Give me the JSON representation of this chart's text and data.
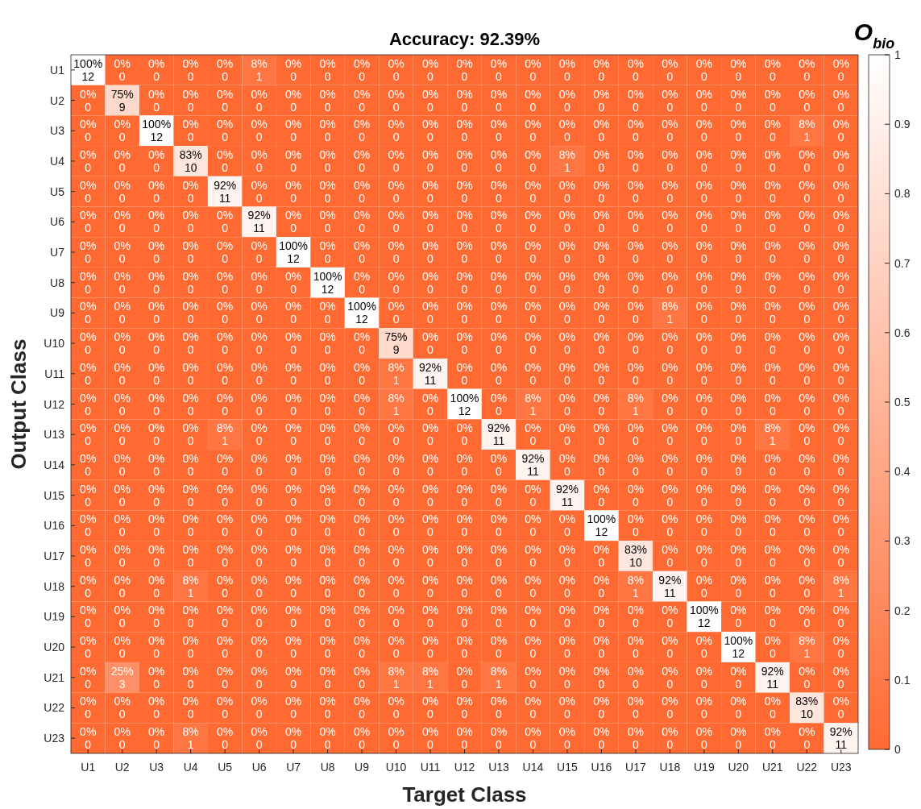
{
  "chart_data": {
    "type": "heatmap",
    "title": "Accuracy: 92.39%",
    "xlabel": "Target Class",
    "ylabel": "Output Class",
    "clabel": "O$_{bio}$",
    "categories": [
      "U1",
      "U2",
      "U3",
      "U4",
      "U5",
      "U6",
      "U7",
      "U8",
      "U9",
      "U10",
      "U11",
      "U12",
      "U13",
      "U14",
      "U15",
      "U16",
      "U17",
      "U18",
      "U19",
      "U20",
      "U21",
      "U22",
      "U23"
    ],
    "y_categories": [
      "U1",
      "U2",
      "U3",
      "U4",
      "U5",
      "U6",
      "U7",
      "U8",
      "U9",
      "U10",
      "U11",
      "U12",
      "U13",
      "U14",
      "U15",
      "U16",
      "U17",
      "U18",
      "U19",
      "U20",
      "U21",
      "U22",
      "U23"
    ],
    "clim": [
      0,
      1
    ],
    "cticks": [
      0,
      0.1,
      0.2,
      0.3,
      0.4,
      0.5,
      0.6,
      0.7,
      0.8,
      0.9,
      1
    ],
    "cells": [
      [
        1,
        0,
        0,
        0,
        0,
        0.08,
        0,
        0,
        0,
        0,
        0,
        0,
        0,
        0,
        0,
        0,
        0,
        0,
        0,
        0,
        0,
        0,
        0
      ],
      [
        0,
        0.75,
        0,
        0,
        0,
        0,
        0,
        0,
        0,
        0,
        0,
        0,
        0,
        0,
        0,
        0,
        0,
        0,
        0,
        0,
        0,
        0,
        0
      ],
      [
        0,
        0,
        1,
        0,
        0,
        0,
        0,
        0,
        0,
        0,
        0,
        0,
        0,
        0,
        0,
        0,
        0,
        0,
        0,
        0,
        0,
        0.08,
        0
      ],
      [
        0,
        0,
        0,
        0.83,
        0,
        0,
        0,
        0,
        0,
        0,
        0,
        0,
        0,
        0,
        0.08,
        0,
        0,
        0,
        0,
        0,
        0,
        0,
        0
      ],
      [
        0,
        0,
        0,
        0,
        0.92,
        0,
        0,
        0,
        0,
        0,
        0,
        0,
        0,
        0,
        0,
        0,
        0,
        0,
        0,
        0,
        0,
        0,
        0
      ],
      [
        0,
        0,
        0,
        0,
        0,
        0.92,
        0,
        0,
        0,
        0,
        0,
        0,
        0,
        0,
        0,
        0,
        0,
        0,
        0,
        0,
        0,
        0,
        0
      ],
      [
        0,
        0,
        0,
        0,
        0,
        0,
        1,
        0,
        0,
        0,
        0,
        0,
        0,
        0,
        0,
        0,
        0,
        0,
        0,
        0,
        0,
        0,
        0
      ],
      [
        0,
        0,
        0,
        0,
        0,
        0,
        0,
        1,
        0,
        0,
        0,
        0,
        0,
        0,
        0,
        0,
        0,
        0,
        0,
        0,
        0,
        0,
        0
      ],
      [
        0,
        0,
        0,
        0,
        0,
        0,
        0,
        0,
        1,
        0,
        0,
        0,
        0,
        0,
        0,
        0,
        0,
        0.08,
        0,
        0,
        0,
        0,
        0
      ],
      [
        0,
        0,
        0,
        0,
        0,
        0,
        0,
        0,
        0,
        0.75,
        0,
        0,
        0,
        0,
        0,
        0,
        0,
        0,
        0,
        0,
        0,
        0,
        0
      ],
      [
        0,
        0,
        0,
        0,
        0,
        0,
        0,
        0,
        0,
        0.08,
        0.92,
        0,
        0,
        0,
        0,
        0,
        0,
        0,
        0,
        0,
        0,
        0,
        0
      ],
      [
        0,
        0,
        0,
        0,
        0,
        0,
        0,
        0,
        0,
        0.08,
        0,
        1,
        0,
        0.08,
        0,
        0,
        0.08,
        0,
        0,
        0,
        0,
        0,
        0
      ],
      [
        0,
        0,
        0,
        0,
        0.08,
        0,
        0,
        0,
        0,
        0,
        0,
        0,
        0.92,
        0,
        0,
        0,
        0,
        0,
        0,
        0,
        0.08,
        0,
        0
      ],
      [
        0,
        0,
        0,
        0,
        0,
        0,
        0,
        0,
        0,
        0,
        0,
        0,
        0,
        0.92,
        0,
        0,
        0,
        0,
        0,
        0,
        0,
        0,
        0
      ],
      [
        0,
        0,
        0,
        0,
        0,
        0,
        0,
        0,
        0,
        0,
        0,
        0,
        0,
        0,
        0.92,
        0,
        0,
        0,
        0,
        0,
        0,
        0,
        0
      ],
      [
        0,
        0,
        0,
        0,
        0,
        0,
        0,
        0,
        0,
        0,
        0,
        0,
        0,
        0,
        0,
        1,
        0,
        0,
        0,
        0,
        0,
        0,
        0
      ],
      [
        0,
        0,
        0,
        0,
        0,
        0,
        0,
        0,
        0,
        0,
        0,
        0,
        0,
        0,
        0,
        0,
        0.83,
        0,
        0,
        0,
        0,
        0,
        0
      ],
      [
        0,
        0,
        0,
        0.08,
        0,
        0,
        0,
        0,
        0,
        0,
        0,
        0,
        0,
        0,
        0,
        0,
        0.08,
        0.92,
        0,
        0,
        0,
        0,
        0.08
      ],
      [
        0,
        0,
        0,
        0,
        0,
        0,
        0,
        0,
        0,
        0,
        0,
        0,
        0,
        0,
        0,
        0,
        0,
        0,
        1,
        0,
        0,
        0,
        0
      ],
      [
        0,
        0,
        0,
        0,
        0,
        0,
        0,
        0,
        0,
        0,
        0,
        0,
        0,
        0,
        0,
        0,
        0,
        0,
        0,
        1,
        0,
        0.08,
        0
      ],
      [
        0,
        0.25,
        0,
        0,
        0,
        0,
        0,
        0,
        0,
        0.08,
        0.08,
        0,
        0.08,
        0,
        0,
        0,
        0,
        0,
        0,
        0,
        0.92,
        0,
        0
      ],
      [
        0,
        0,
        0,
        0,
        0,
        0,
        0,
        0,
        0,
        0,
        0,
        0,
        0,
        0,
        0,
        0,
        0,
        0,
        0,
        0,
        0,
        0.83,
        0
      ],
      [
        0,
        0,
        0,
        0.08,
        0,
        0,
        0,
        0,
        0,
        0,
        0,
        0,
        0,
        0,
        0,
        0,
        0,
        0,
        0,
        0,
        0,
        0,
        0.92
      ]
    ],
    "cell_labels": [
      [
        "100%\n12",
        "0%\n0",
        "0%\n0",
        "0%\n0",
        "0%\n0",
        "8%\n1",
        "0%\n0",
        "0%\n0",
        "0%\n0",
        "0%\n0",
        "0%\n0",
        "0%\n0",
        "0%\n0",
        "0%\n0",
        "0%\n0",
        "0%\n0",
        "0%\n0",
        "0%\n0",
        "0%\n0",
        "0%\n0",
        "0%\n0",
        "0%\n0",
        "0%\n0"
      ],
      [
        "0%\n0",
        "75%\n9",
        "0%\n0",
        "0%\n0",
        "0%\n0",
        "0%\n0",
        "0%\n0",
        "0%\n0",
        "0%\n0",
        "0%\n0",
        "0%\n0",
        "0%\n0",
        "0%\n0",
        "0%\n0",
        "0%\n0",
        "0%\n0",
        "0%\n0",
        "0%\n0",
        "0%\n0",
        "0%\n0",
        "0%\n0",
        "0%\n0",
        "0%\n0"
      ],
      [
        "0%\n0",
        "0%\n0",
        "100%\n12",
        "0%\n0",
        "0%\n0",
        "0%\n0",
        "0%\n0",
        "0%\n0",
        "0%\n0",
        "0%\n0",
        "0%\n0",
        "0%\n0",
        "0%\n0",
        "0%\n0",
        "0%\n0",
        "0%\n0",
        "0%\n0",
        "0%\n0",
        "0%\n0",
        "0%\n0",
        "0%\n0",
        "8%\n1",
        "0%\n0"
      ],
      [
        "0%\n0",
        "0%\n0",
        "0%\n0",
        "83%\n10",
        "0%\n0",
        "0%\n0",
        "0%\n0",
        "0%\n0",
        "0%\n0",
        "0%\n0",
        "0%\n0",
        "0%\n0",
        "0%\n0",
        "0%\n0",
        "8%\n1",
        "0%\n0",
        "0%\n0",
        "0%\n0",
        "0%\n0",
        "0%\n0",
        "0%\n0",
        "0%\n0",
        "0%\n0"
      ],
      [
        "0%\n0",
        "0%\n0",
        "0%\n0",
        "0%\n0",
        "92%\n11",
        "0%\n0",
        "0%\n0",
        "0%\n0",
        "0%\n0",
        "0%\n0",
        "0%\n0",
        "0%\n0",
        "0%\n0",
        "0%\n0",
        "0%\n0",
        "0%\n0",
        "0%\n0",
        "0%\n0",
        "0%\n0",
        "0%\n0",
        "0%\n0",
        "0%\n0",
        "0%\n0"
      ],
      [
        "0%\n0",
        "0%\n0",
        "0%\n0",
        "0%\n0",
        "0%\n0",
        "92%\n11",
        "0%\n0",
        "0%\n0",
        "0%\n0",
        "0%\n0",
        "0%\n0",
        "0%\n0",
        "0%\n0",
        "0%\n0",
        "0%\n0",
        "0%\n0",
        "0%\n0",
        "0%\n0",
        "0%\n0",
        "0%\n0",
        "0%\n0",
        "0%\n0",
        "0%\n0"
      ],
      [
        "0%\n0",
        "0%\n0",
        "0%\n0",
        "0%\n0",
        "0%\n0",
        "0%\n0",
        "100%\n12",
        "0%\n0",
        "0%\n0",
        "0%\n0",
        "0%\n0",
        "0%\n0",
        "0%\n0",
        "0%\n0",
        "0%\n0",
        "0%\n0",
        "0%\n0",
        "0%\n0",
        "0%\n0",
        "0%\n0",
        "0%\n0",
        "0%\n0",
        "0%\n0"
      ],
      [
        "0%\n0",
        "0%\n0",
        "0%\n0",
        "0%\n0",
        "0%\n0",
        "0%\n0",
        "0%\n0",
        "100%\n12",
        "0%\n0",
        "0%\n0",
        "0%\n0",
        "0%\n0",
        "0%\n0",
        "0%\n0",
        "0%\n0",
        "0%\n0",
        "0%\n0",
        "0%\n0",
        "0%\n0",
        "0%\n0",
        "0%\n0",
        "0%\n0",
        "0%\n0"
      ],
      [
        "0%\n0",
        "0%\n0",
        "0%\n0",
        "0%\n0",
        "0%\n0",
        "0%\n0",
        "0%\n0",
        "0%\n0",
        "100%\n12",
        "0%\n0",
        "0%\n0",
        "0%\n0",
        "0%\n0",
        "0%\n0",
        "0%\n0",
        "0%\n0",
        "0%\n0",
        "8%\n1",
        "0%\n0",
        "0%\n0",
        "0%\n0",
        "0%\n0",
        "0%\n0"
      ],
      [
        "0%\n0",
        "0%\n0",
        "0%\n0",
        "0%\n0",
        "0%\n0",
        "0%\n0",
        "0%\n0",
        "0%\n0",
        "0%\n0",
        "75%\n9",
        "0%\n0",
        "0%\n0",
        "0%\n0",
        "0%\n0",
        "0%\n0",
        "0%\n0",
        "0%\n0",
        "0%\n0",
        "0%\n0",
        "0%\n0",
        "0%\n0",
        "0%\n0",
        "0%\n0"
      ],
      [
        "0%\n0",
        "0%\n0",
        "0%\n0",
        "0%\n0",
        "0%\n0",
        "0%\n0",
        "0%\n0",
        "0%\n0",
        "0%\n0",
        "8%\n1",
        "92%\n11",
        "0%\n0",
        "0%\n0",
        "0%\n0",
        "0%\n0",
        "0%\n0",
        "0%\n0",
        "0%\n0",
        "0%\n0",
        "0%\n0",
        "0%\n0",
        "0%\n0",
        "0%\n0"
      ],
      [
        "0%\n0",
        "0%\n0",
        "0%\n0",
        "0%\n0",
        "0%\n0",
        "0%\n0",
        "0%\n0",
        "0%\n0",
        "0%\n0",
        "8%\n1",
        "0%\n0",
        "100%\n12",
        "0%\n0",
        "8%\n1",
        "0%\n0",
        "0%\n0",
        "8%\n1",
        "0%\n0",
        "0%\n0",
        "0%\n0",
        "0%\n0",
        "0%\n0",
        "0%\n0"
      ],
      [
        "0%\n0",
        "0%\n0",
        "0%\n0",
        "0%\n0",
        "8%\n1",
        "0%\n0",
        "0%\n0",
        "0%\n0",
        "0%\n0",
        "0%\n0",
        "0%\n0",
        "0%\n0",
        "92%\n11",
        "0%\n0",
        "0%\n0",
        "0%\n0",
        "0%\n0",
        "0%\n0",
        "0%\n0",
        "0%\n0",
        "8%\n1",
        "0%\n0",
        "0%\n0"
      ],
      [
        "0%\n0",
        "0%\n0",
        "0%\n0",
        "0%\n0",
        "0%\n0",
        "0%\n0",
        "0%\n0",
        "0%\n0",
        "0%\n0",
        "0%\n0",
        "0%\n0",
        "0%\n0",
        "0%\n0",
        "92%\n11",
        "0%\n0",
        "0%\n0",
        "0%\n0",
        "0%\n0",
        "0%\n0",
        "0%\n0",
        "0%\n0",
        "0%\n0",
        "0%\n0"
      ],
      [
        "0%\n0",
        "0%\n0",
        "0%\n0",
        "0%\n0",
        "0%\n0",
        "0%\n0",
        "0%\n0",
        "0%\n0",
        "0%\n0",
        "0%\n0",
        "0%\n0",
        "0%\n0",
        "0%\n0",
        "0%\n0",
        "92%\n11",
        "0%\n0",
        "0%\n0",
        "0%\n0",
        "0%\n0",
        "0%\n0",
        "0%\n0",
        "0%\n0",
        "0%\n0"
      ],
      [
        "0%\n0",
        "0%\n0",
        "0%\n0",
        "0%\n0",
        "0%\n0",
        "0%\n0",
        "0%\n0",
        "0%\n0",
        "0%\n0",
        "0%\n0",
        "0%\n0",
        "0%\n0",
        "0%\n0",
        "0%\n0",
        "0%\n0",
        "100%\n12",
        "0%\n0",
        "0%\n0",
        "0%\n0",
        "0%\n0",
        "0%\n0",
        "0%\n0",
        "0%\n0"
      ],
      [
        "0%\n0",
        "0%\n0",
        "0%\n0",
        "0%\n0",
        "0%\n0",
        "0%\n0",
        "0%\n0",
        "0%\n0",
        "0%\n0",
        "0%\n0",
        "0%\n0",
        "0%\n0",
        "0%\n0",
        "0%\n0",
        "0%\n0",
        "0%\n0",
        "83%\n10",
        "0%\n0",
        "0%\n0",
        "0%\n0",
        "0%\n0",
        "0%\n0",
        "0%\n0"
      ],
      [
        "0%\n0",
        "0%\n0",
        "0%\n0",
        "8%\n1",
        "0%\n0",
        "0%\n0",
        "0%\n0",
        "0%\n0",
        "0%\n0",
        "0%\n0",
        "0%\n0",
        "0%\n0",
        "0%\n0",
        "0%\n0",
        "0%\n0",
        "0%\n0",
        "8%\n1",
        "92%\n11",
        "0%\n0",
        "0%\n0",
        "0%\n0",
        "0%\n0",
        "8%\n1"
      ],
      [
        "0%\n0",
        "0%\n0",
        "0%\n0",
        "0%\n0",
        "0%\n0",
        "0%\n0",
        "0%\n0",
        "0%\n0",
        "0%\n0",
        "0%\n0",
        "0%\n0",
        "0%\n0",
        "0%\n0",
        "0%\n0",
        "0%\n0",
        "0%\n0",
        "0%\n0",
        "0%\n0",
        "100%\n12",
        "0%\n0",
        "0%\n0",
        "0%\n0",
        "0%\n0"
      ],
      [
        "0%\n0",
        "0%\n0",
        "0%\n0",
        "0%\n0",
        "0%\n0",
        "0%\n0",
        "0%\n0",
        "0%\n0",
        "0%\n0",
        "0%\n0",
        "0%\n0",
        "0%\n0",
        "0%\n0",
        "0%\n0",
        "0%\n0",
        "0%\n0",
        "0%\n0",
        "0%\n0",
        "0%\n0",
        "100%\n12",
        "0%\n0",
        "8%\n1",
        "0%\n0"
      ],
      [
        "0%\n0",
        "25%\n3",
        "0%\n0",
        "0%\n0",
        "0%\n0",
        "0%\n0",
        "0%\n0",
        "0%\n0",
        "0%\n0",
        "8%\n1",
        "8%\n1",
        "0%\n0",
        "8%\n1",
        "0%\n0",
        "0%\n0",
        "0%\n0",
        "0%\n0",
        "0%\n0",
        "0%\n0",
        "0%\n0",
        "92%\n11",
        "0%\n0",
        "0%\n0"
      ],
      [
        "0%\n0",
        "0%\n0",
        "0%\n0",
        "0%\n0",
        "0%\n0",
        "0%\n0",
        "0%\n0",
        "0%\n0",
        "0%\n0",
        "0%\n0",
        "0%\n0",
        "0%\n0",
        "0%\n0",
        "0%\n0",
        "0%\n0",
        "0%\n0",
        "0%\n0",
        "0%\n0",
        "0%\n0",
        "0%\n0",
        "0%\n0",
        "83%\n10",
        "0%\n0"
      ],
      [
        "0%\n0",
        "0%\n0",
        "0%\n0",
        "8%\n1",
        "0%\n0",
        "0%\n0",
        "0%\n0",
        "0%\n0",
        "0%\n0",
        "0%\n0",
        "0%\n0",
        "0%\n0",
        "0%\n0",
        "0%\n0",
        "0%\n0",
        "0%\n0",
        "0%\n0",
        "0%\n0",
        "0%\n0",
        "0%\n0",
        "0%\n0",
        "0%\n0",
        "92%\n11"
      ]
    ]
  }
}
